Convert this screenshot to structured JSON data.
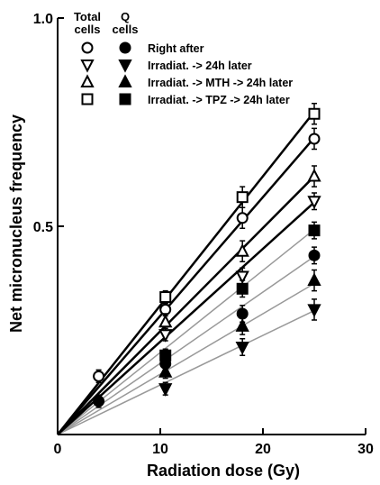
{
  "chart_data": {
    "type": "scatter",
    "title": "",
    "xlabel": "Radiation dose (Gy)",
    "ylabel": "Net micronucleus frequency",
    "xlim": [
      0,
      30
    ],
    "ylim": [
      0,
      1.0
    ],
    "xticks": [
      "0",
      "10",
      "20",
      "30"
    ],
    "yticks": [
      "0.5",
      "1.0"
    ],
    "legend": {
      "placement": "top-left",
      "headers": {
        "total": [
          "Total",
          "cells"
        ],
        "q": [
          "Q",
          "cells"
        ]
      },
      "entries": [
        "Right after",
        "Irradiat. -> 24h later",
        "Irradiat. -> MTH -> 24h later",
        "Irradiat. -> TPZ -> 24h later"
      ]
    },
    "series": [
      {
        "name": "Right after",
        "population": "Total cells",
        "marker": "circle",
        "filled": false,
        "slope": 0.0285,
        "points": [
          {
            "x": 4,
            "y": 0.14,
            "err": 0.015
          },
          {
            "x": 10.5,
            "y": 0.3,
            "err": 0.015
          },
          {
            "x": 18,
            "y": 0.52,
            "err": 0.025
          },
          {
            "x": 25,
            "y": 0.71,
            "err": 0.025
          }
        ]
      },
      {
        "name": "Irradiat. -> 24h later",
        "population": "Total cells",
        "marker": "triangle-down",
        "filled": false,
        "slope": 0.0223,
        "points": [
          {
            "x": 10.5,
            "y": 0.24,
            "err": 0.015
          },
          {
            "x": 18,
            "y": 0.38,
            "err": 0.02
          },
          {
            "x": 25,
            "y": 0.56,
            "err": 0.02
          }
        ]
      },
      {
        "name": "Irradiat. -> MTH -> 24h later",
        "population": "Total cells",
        "marker": "triangle-up",
        "filled": false,
        "slope": 0.0248,
        "points": [
          {
            "x": 10.5,
            "y": 0.27,
            "err": 0.02
          },
          {
            "x": 18,
            "y": 0.44,
            "err": 0.025
          },
          {
            "x": 25,
            "y": 0.62,
            "err": 0.025
          }
        ]
      },
      {
        "name": "Irradiat. -> TPZ -> 24h later",
        "population": "Total cells",
        "marker": "square",
        "filled": false,
        "slope": 0.031,
        "points": [
          {
            "x": 10.5,
            "y": 0.33,
            "err": 0.015
          },
          {
            "x": 18,
            "y": 0.57,
            "err": 0.025
          },
          {
            "x": 25,
            "y": 0.77,
            "err": 0.025
          }
        ]
      },
      {
        "name": "Right after",
        "population": "Q cells",
        "marker": "circle",
        "filled": true,
        "slope": 0.0171,
        "points": [
          {
            "x": 4,
            "y": 0.08,
            "err": 0.015
          },
          {
            "x": 10.5,
            "y": 0.17,
            "err": 0.015
          },
          {
            "x": 18,
            "y": 0.29,
            "err": 0.02
          },
          {
            "x": 25,
            "y": 0.43,
            "err": 0.02
          }
        ]
      },
      {
        "name": "Irradiat. -> 24h later",
        "population": "Q cells",
        "marker": "triangle-down",
        "filled": true,
        "slope": 0.0119,
        "points": [
          {
            "x": 10.5,
            "y": 0.11,
            "err": 0.015
          },
          {
            "x": 18,
            "y": 0.21,
            "err": 0.02
          },
          {
            "x": 25,
            "y": 0.3,
            "err": 0.025
          }
        ]
      },
      {
        "name": "Irradiat. -> MTH -> 24h later",
        "population": "Q cells",
        "marker": "triangle-up",
        "filled": true,
        "slope": 0.0145,
        "points": [
          {
            "x": 10.5,
            "y": 0.15,
            "err": 0.015
          },
          {
            "x": 18,
            "y": 0.26,
            "err": 0.02
          },
          {
            "x": 25,
            "y": 0.37,
            "err": 0.025
          }
        ]
      },
      {
        "name": "Irradiat. -> TPZ -> 24h later",
        "population": "Q cells",
        "marker": "square",
        "filled": true,
        "slope": 0.0197,
        "points": [
          {
            "x": 10.5,
            "y": 0.19,
            "err": 0.015
          },
          {
            "x": 18,
            "y": 0.35,
            "err": 0.02
          },
          {
            "x": 25,
            "y": 0.49,
            "err": 0.02
          }
        ]
      }
    ],
    "colors": {
      "total_line": "#000000",
      "q_line": "#999999",
      "marker": "#000000"
    }
  }
}
